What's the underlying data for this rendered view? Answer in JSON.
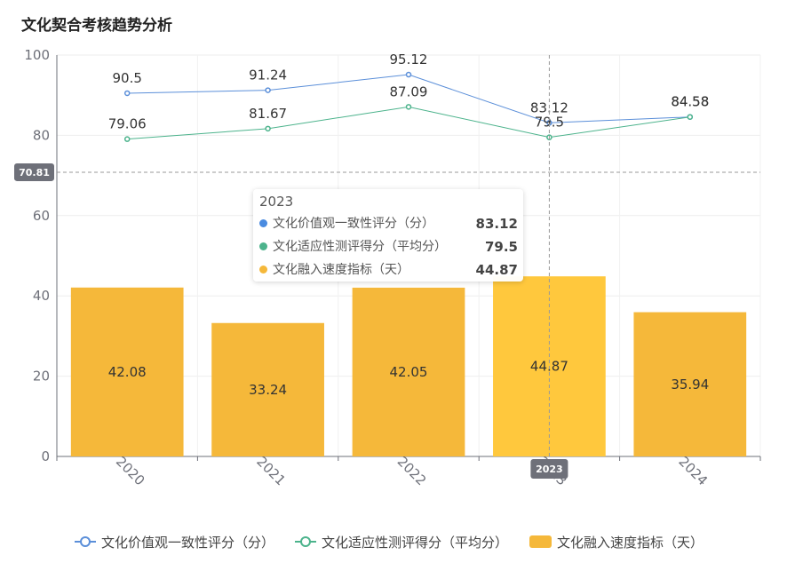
{
  "title": "文化契合考核趋势分析",
  "chart_data": {
    "type": "bar",
    "categories": [
      "2020",
      "2021",
      "2022",
      "2023",
      "2024"
    ],
    "ylim": [
      0,
      100
    ],
    "yticks": [
      0,
      20,
      40,
      60,
      80,
      100
    ],
    "grid": true,
    "series": [
      {
        "name": "文化价值观一致性评分（分）",
        "type": "line",
        "color": "#5b8fd9",
        "values": [
          90.5,
          91.24,
          95.12,
          83.12,
          84.58
        ]
      },
      {
        "name": "文化适应性测评得分（平均分）",
        "type": "line",
        "color": "#4cb38c",
        "values": [
          79.06,
          81.67,
          87.09,
          79.5,
          84.58
        ]
      },
      {
        "name": "文化融入速度指标（天）",
        "type": "bar",
        "color": "#f5b83a",
        "highlight_color": "#ffc83d",
        "values": [
          42.08,
          33.24,
          42.05,
          44.87,
          35.94
        ]
      }
    ],
    "crosshair": {
      "category": "2023",
      "y_value": 70.81,
      "y_label": "70.81",
      "x_label": "2023"
    },
    "tooltip": {
      "title": "2023",
      "rows": [
        {
          "name": "文化价值观一致性评分（分）",
          "value": "83.12",
          "color": "#4a8be0"
        },
        {
          "name": "文化适应性测评得分（平均分）",
          "value": "79.5",
          "color": "#4cb38c"
        },
        {
          "name": "文化融入速度指标（天）",
          "value": "44.87",
          "color": "#f5b83a"
        }
      ]
    },
    "legend": [
      {
        "name": "文化价值观一致性评分（分）",
        "kind": "line",
        "color": "#5b8fd9"
      },
      {
        "name": "文化适应性测评得分（平均分）",
        "kind": "line",
        "color": "#4cb38c"
      },
      {
        "name": "文化融入速度指标（天）",
        "kind": "bar",
        "color": "#f5b83a"
      }
    ],
    "legend_position": "bottom-center"
  }
}
